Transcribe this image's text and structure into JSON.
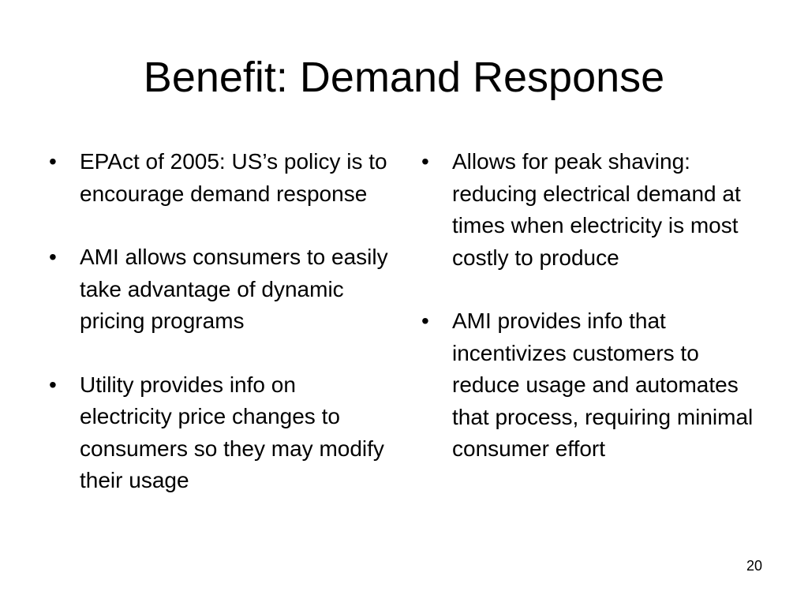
{
  "slide": {
    "title": "Benefit: Demand Response",
    "page_number": "20",
    "bullet_glyph": "•"
  },
  "left_column": {
    "items": [
      "EPAct of 2005: US’s policy is to encourage demand response",
      "AMI allows consumers to easily take advantage of dynamic pricing programs",
      "Utility provides info on electricity price changes to consumers so they may modify their usage"
    ]
  },
  "right_column": {
    "items": [
      "Allows for peak shaving: reducing electrical demand at times when electricity is most costly to produce",
      "AMI provides info that incentivizes customers to reduce usage and automates that process, requiring minimal consumer effort"
    ]
  }
}
